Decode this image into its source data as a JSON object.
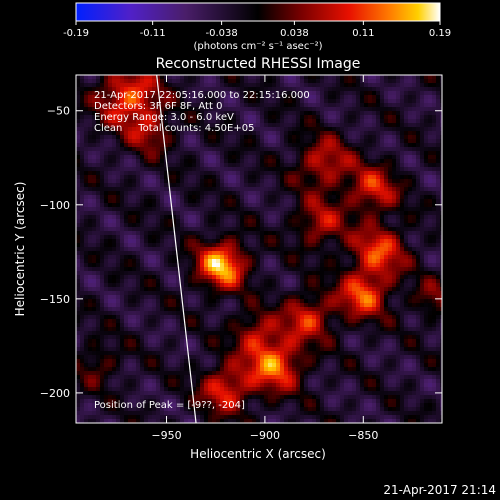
{
  "chart_data": {
    "type": "heatmap",
    "title": "Reconstructed RHESSI Image",
    "colorbar": {
      "ticks": [
        "-0.19",
        "-0.11",
        "-0.038",
        "0.038",
        "0.11",
        "0.19"
      ],
      "range": [
        -0.19,
        0.19
      ],
      "unit_label": "(photons cm⁻² s⁻¹ asec⁻²)"
    },
    "xlabel": "Heliocentric X (arcsec)",
    "ylabel": "Heliocentric Y (arcsec)",
    "xlim": [
      -996,
      -810
    ],
    "ylim": [
      -216,
      -31
    ],
    "xticks": [
      {
        "value": -950,
        "label": "−950"
      },
      {
        "value": -900,
        "label": "−900"
      },
      {
        "value": -850,
        "label": "−850"
      }
    ],
    "yticks": [
      {
        "value": -50,
        "label": "−50"
      },
      {
        "value": -100,
        "label": "−100"
      },
      {
        "value": -150,
        "label": "−150"
      },
      {
        "value": -200,
        "label": "−200"
      }
    ],
    "annotations": [
      "21-Apr-2017 22:05:16.000 to 22:15:16.000",
      "Detectors: 3F 6F 8F, Att 0",
      "Energy Range: 3.0 - 6.0 keV",
      "Clean     Total counts: 4.50E+05"
    ],
    "peak_label": "Position of Peak = [-9??, -204]",
    "limb_line": [
      [
        -955,
        -31
      ],
      [
        -935,
        -216
      ]
    ],
    "sources": [
      {
        "x": -922,
        "y": -132,
        "sigma": 9,
        "amp": 0.19
      },
      {
        "x": -969,
        "y": -43,
        "sigma": 11,
        "amp": 0.15
      },
      {
        "x": -958,
        "y": -62,
        "sigma": 8,
        "amp": 0.08
      },
      {
        "x": -870,
        "y": -78,
        "sigma": 10,
        "amp": 0.11
      },
      {
        "x": -845,
        "y": -92,
        "sigma": 9,
        "amp": 0.12
      },
      {
        "x": -872,
        "y": -110,
        "sigma": 9,
        "amp": 0.1
      },
      {
        "x": -842,
        "y": -125,
        "sigma": 10,
        "amp": 0.13
      },
      {
        "x": -850,
        "y": -148,
        "sigma": 9,
        "amp": 0.14
      },
      {
        "x": -878,
        "y": -160,
        "sigma": 9,
        "amp": 0.12
      },
      {
        "x": -895,
        "y": -185,
        "sigma": 10,
        "amp": 0.16
      },
      {
        "x": -920,
        "y": -198,
        "sigma": 9,
        "amp": 0.13
      },
      {
        "x": -905,
        "y": -168,
        "sigma": 8,
        "amp": 0.09
      },
      {
        "x": -815,
        "y": -150,
        "sigma": 7,
        "amp": 0.07
      },
      {
        "x": -985,
        "y": -185,
        "sigma": 8,
        "amp": 0.06
      }
    ]
  },
  "footer_timestamp": "21-Apr-2017 21:14"
}
